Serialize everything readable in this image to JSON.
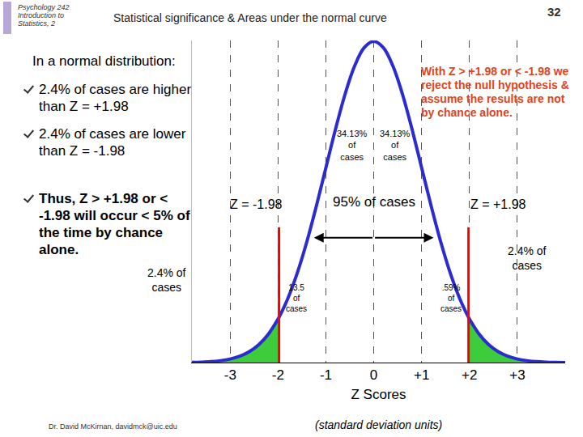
{
  "slide": {
    "course": "Psychology 242 Introduction to Statistics, 2",
    "heading": "Statistical significance & Areas under the normal curve",
    "page": "32",
    "intro": "In a normal distribution:",
    "bullets": [
      "2.4% of cases are higher than Z = +1.98",
      "2.4% of cases are lower than Z = -1.98",
      "Thus, Z > +1.98 or < -1.98 will occur < 5% of the time by chance alone."
    ],
    "conclusion": "With Z > +1.98 or < -1.98 we reject the null hypothesis & assume the results are not by chance alone.",
    "footer": "Dr. David McKirnan, davidmck@uic.edu"
  },
  "chart_data": {
    "type": "area",
    "x": [
      -3.8,
      -3.6,
      -3.4,
      -3.2,
      -3.0,
      -2.8,
      -2.6,
      -2.4,
      -2.2,
      -2.0,
      -1.98,
      -1.8,
      -1.6,
      -1.4,
      -1.2,
      -1.0,
      -0.8,
      -0.6,
      -0.4,
      -0.2,
      0,
      0.2,
      0.4,
      0.6,
      0.8,
      1.0,
      1.2,
      1.4,
      1.6,
      1.8,
      1.98,
      2.0,
      2.2,
      2.4,
      2.6,
      2.8,
      3.0,
      3.2,
      3.4,
      3.6,
      3.8,
      4.0
    ],
    "values": [
      0.0003,
      0.0006,
      0.0012,
      0.0024,
      0.0044,
      0.0079,
      0.0136,
      0.0224,
      0.0355,
      0.054,
      0.0562,
      0.079,
      0.1109,
      0.1497,
      0.1942,
      0.242,
      0.2897,
      0.3332,
      0.3683,
      0.391,
      0.3989,
      0.391,
      0.3683,
      0.3332,
      0.2897,
      0.242,
      0.1942,
      0.1497,
      0.1109,
      0.079,
      0.0562,
      0.054,
      0.0355,
      0.0224,
      0.0136,
      0.0079,
      0.0044,
      0.0024,
      0.0012,
      0.0006,
      0.0003,
      0.0001
    ],
    "color": "#2b2bd0",
    "critical_values": [
      -1.98,
      1.98
    ],
    "critical_labels": [
      "Z = -1.98",
      "Z = +1.98"
    ],
    "annotations": [
      "34.13% of cases",
      "34.13% of cases",
      "95% of cases",
      "13.5 of cases",
      ".59% of cases",
      "2.4% of cases",
      "2.4% of cases"
    ],
    "x_label": "Z Scores",
    "x_sublabel": "(standard deviation units)",
    "xlim": [
      -3.8,
      4.0
    ],
    "ylim": [
      0,
      0.4
    ],
    "xticks": [
      -3,
      -2,
      -1,
      0,
      {
        "value": 1,
        "label": "+1"
      },
      {
        "value": 2,
        "label": "+2"
      },
      {
        "value": 3,
        "label": "+3"
      }
    ],
    "grid": true,
    "tick_labels": "x"
  }
}
